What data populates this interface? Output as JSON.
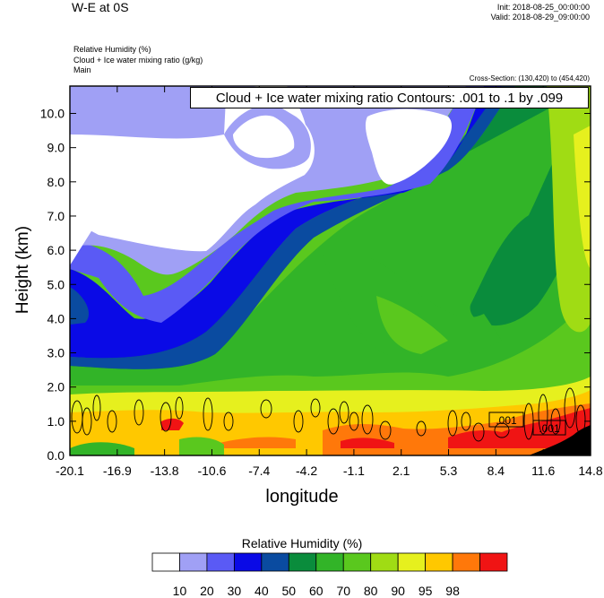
{
  "header": {
    "title": "W-E at 0S",
    "init": "Init: 2018-08-25_00:00:00",
    "valid": "Valid: 2018-08-29_09:00:00",
    "subtitle_lines": [
      "Relative Humidity   (%)",
      "Cloud + Ice water mixing ratio   (g/kg)",
      "Main"
    ],
    "cross_section": "Cross-Section: (130,420) to (454,420)",
    "contour_title": "Cloud + Ice water mixing ratio Contours: .001 to .1 by .099"
  },
  "chart_data": {
    "type": "heatmap",
    "xlabel": "longitude",
    "ylabel": "Height (km)",
    "x_ticks": [
      "-20.1",
      "-16.9",
      "-13.8",
      "-10.6",
      "-7.4",
      "-4.2",
      "-1.1",
      "2.1",
      "5.3",
      "8.4",
      "11.6",
      "14.8"
    ],
    "y_ticks": [
      "0.0",
      "1.0",
      "2.0",
      "3.0",
      "4.0",
      "5.0",
      "6.0",
      "7.0",
      "8.0",
      "9.0",
      "10.0"
    ],
    "xlim": [
      -20.1,
      14.8
    ],
    "ylim": [
      0,
      10.8
    ],
    "contour_labels": [
      ".001",
      ".001"
    ],
    "colorbar": {
      "title": "Relative Humidity  (%)",
      "levels": [
        "10",
        "20",
        "30",
        "40",
        "50",
        "60",
        "70",
        "80",
        "90",
        "95",
        "98"
      ],
      "colors": [
        "#ffffff",
        "#a0a0f5",
        "#5a5af5",
        "#0a0ae6",
        "#0a4ba0",
        "#0a8c3c",
        "#32b428",
        "#5ac81e",
        "#a0dc14",
        "#e6f01e",
        "#ffc800",
        "#ff780a",
        "#f01414"
      ]
    }
  }
}
